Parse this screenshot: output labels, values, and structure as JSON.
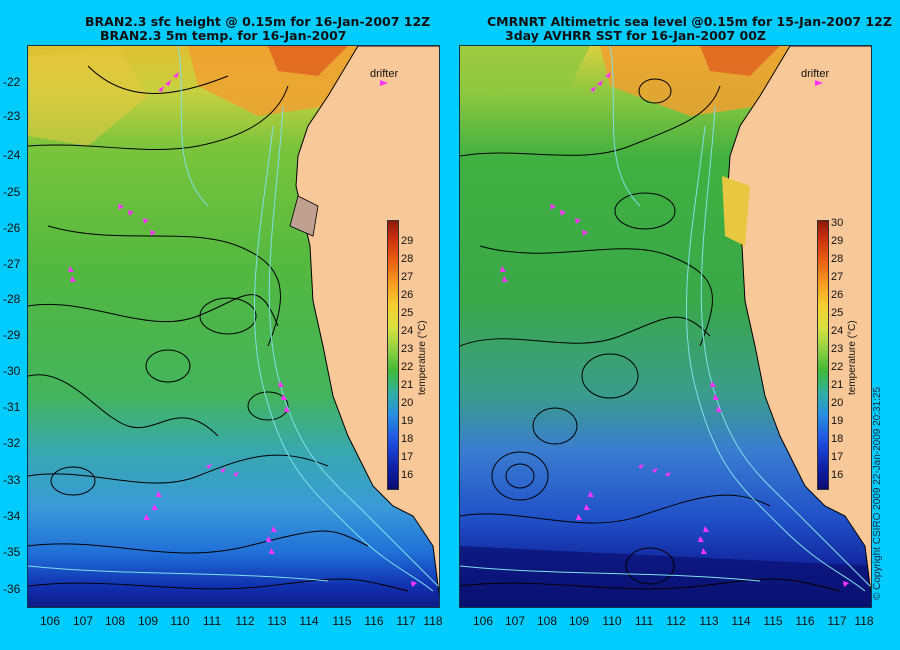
{
  "left_panel": {
    "title_line1": "BRAN2.3 sfc height @ 0.15m for 16-Jan-2007 12Z",
    "title_line2": "BRAN2.3 5m temp. for 16-Jan-2007",
    "legend_label": "drifter"
  },
  "right_panel": {
    "title_line1": "CMRNRT Altimetric sea level  @0.15m  for 15-Jan-2007 12Z",
    "title_line2": "3day AVHRR SST for 16-Jan-2007 00Z",
    "legend_label": "drifter"
  },
  "map": {
    "lon_labels": [
      "106",
      "107",
      "108",
      "109",
      "110",
      "111",
      "112",
      "113",
      "114",
      "115",
      "116",
      "117",
      "118"
    ],
    "lat_labels": [
      "-22",
      "-23",
      "-24",
      "-25",
      "-26",
      "-27",
      "-28",
      "-29",
      "-30",
      "-31",
      "-32",
      "-33",
      "-34",
      "-35",
      "-36"
    ],
    "land_color": "#f9c898",
    "contour_color": "#000000",
    "bathymetry_color": "#7fe0e8",
    "drifter_color": "#ff33ff"
  },
  "colorbar_left": {
    "ticks": [
      "29",
      "28",
      "27",
      "26",
      "25",
      "24",
      "23",
      "22",
      "21",
      "20",
      "19",
      "18",
      "17",
      "16"
    ],
    "unit": "temperature (°C)"
  },
  "colorbar_right": {
    "ticks": [
      "30",
      "29",
      "28",
      "27",
      "26",
      "25",
      "24",
      "23",
      "22",
      "21",
      "20",
      "19",
      "18",
      "17",
      "16"
    ],
    "unit": "temperature (°C)"
  },
  "copyright": "© Copyright CSIRO 2009  22-Jan-2009 20:31:25"
}
